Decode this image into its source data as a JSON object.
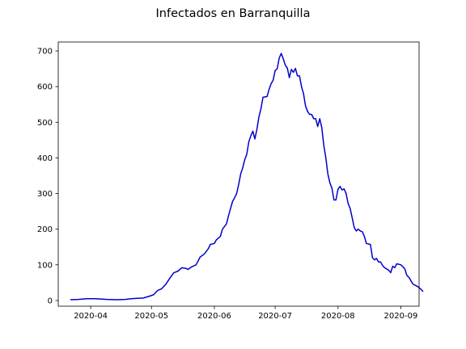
{
  "chart_data": {
    "type": "line",
    "title": "Infectados en Barranquilla",
    "xlabel": "",
    "ylabel": "",
    "x_axis": {
      "type": "date",
      "range": [
        "2020-03-16",
        "2020-09-10"
      ],
      "ticks": [
        "2020-04-01",
        "2020-05-01",
        "2020-06-01",
        "2020-07-01",
        "2020-08-01",
        "2020-09-01"
      ],
      "tick_labels": [
        "2020-04",
        "2020-05",
        "2020-06",
        "2020-07",
        "2020-08",
        "2020-09"
      ]
    },
    "y_axis": {
      "range": [
        -16,
        725
      ],
      "ticks": [
        0,
        100,
        200,
        300,
        400,
        500,
        600,
        700
      ],
      "tick_labels": [
        "0",
        "100",
        "200",
        "300",
        "400",
        "500",
        "600",
        "700"
      ]
    },
    "grid": false,
    "series": [
      {
        "color": "#0000cc",
        "points": [
          [
            "2020-03-22",
            2
          ],
          [
            "2020-03-26",
            3
          ],
          [
            "2020-03-30",
            5
          ],
          [
            "2020-04-03",
            5
          ],
          [
            "2020-04-06",
            4
          ],
          [
            "2020-04-09",
            3
          ],
          [
            "2020-04-14",
            2
          ],
          [
            "2020-04-18",
            3
          ],
          [
            "2020-04-21",
            5
          ],
          [
            "2020-04-24",
            6
          ],
          [
            "2020-04-27",
            7
          ],
          [
            "2020-04-30",
            12
          ],
          [
            "2020-05-02",
            16
          ],
          [
            "2020-05-04",
            28
          ],
          [
            "2020-05-06",
            33
          ],
          [
            "2020-05-08",
            45
          ],
          [
            "2020-05-10",
            62
          ],
          [
            "2020-05-12",
            78
          ],
          [
            "2020-05-14",
            82
          ],
          [
            "2020-05-16",
            92
          ],
          [
            "2020-05-18",
            90
          ],
          [
            "2020-05-19",
            87
          ],
          [
            "2020-05-21",
            95
          ],
          [
            "2020-05-23",
            100
          ],
          [
            "2020-05-25",
            122
          ],
          [
            "2020-05-27",
            130
          ],
          [
            "2020-05-29",
            145
          ],
          [
            "2020-05-30",
            157
          ],
          [
            "2020-06-01",
            160
          ],
          [
            "2020-06-02",
            170
          ],
          [
            "2020-06-04",
            180
          ],
          [
            "2020-06-05",
            200
          ],
          [
            "2020-06-07",
            215
          ],
          [
            "2020-06-08",
            238
          ],
          [
            "2020-06-10",
            278
          ],
          [
            "2020-06-11",
            288
          ],
          [
            "2020-06-12",
            300
          ],
          [
            "2020-06-13",
            325
          ],
          [
            "2020-06-14",
            355
          ],
          [
            "2020-06-15",
            372
          ],
          [
            "2020-06-16",
            395
          ],
          [
            "2020-06-17",
            410
          ],
          [
            "2020-06-18",
            445
          ],
          [
            "2020-06-19",
            462
          ],
          [
            "2020-06-20",
            475
          ],
          [
            "2020-06-21",
            453
          ],
          [
            "2020-06-22",
            480
          ],
          [
            "2020-06-23",
            515
          ],
          [
            "2020-06-24",
            538
          ],
          [
            "2020-06-25",
            570
          ],
          [
            "2020-06-27",
            572
          ],
          [
            "2020-06-28",
            592
          ],
          [
            "2020-06-29",
            608
          ],
          [
            "2020-06-30",
            618
          ],
          [
            "2020-07-01",
            645
          ],
          [
            "2020-07-02",
            650
          ],
          [
            "2020-07-03",
            680
          ],
          [
            "2020-07-04",
            693
          ],
          [
            "2020-07-05",
            678
          ],
          [
            "2020-07-06",
            660
          ],
          [
            "2020-07-07",
            652
          ],
          [
            "2020-07-08",
            625
          ],
          [
            "2020-07-09",
            648
          ],
          [
            "2020-07-10",
            640
          ],
          [
            "2020-07-11",
            651
          ],
          [
            "2020-07-12",
            630
          ],
          [
            "2020-07-13",
            630
          ],
          [
            "2020-07-14",
            600
          ],
          [
            "2020-07-15",
            580
          ],
          [
            "2020-07-16",
            545
          ],
          [
            "2020-07-17",
            530
          ],
          [
            "2020-07-18",
            522
          ],
          [
            "2020-07-19",
            522
          ],
          [
            "2020-07-20",
            510
          ],
          [
            "2020-07-21",
            510
          ],
          [
            "2020-07-22",
            488
          ],
          [
            "2020-07-23",
            510
          ],
          [
            "2020-07-24",
            485
          ],
          [
            "2020-07-25",
            435
          ],
          [
            "2020-07-26",
            400
          ],
          [
            "2020-07-27",
            355
          ],
          [
            "2020-07-28",
            330
          ],
          [
            "2020-07-29",
            315
          ],
          [
            "2020-07-30",
            282
          ],
          [
            "2020-07-31",
            282
          ],
          [
            "2020-08-01",
            312
          ],
          [
            "2020-08-02",
            320
          ],
          [
            "2020-08-03",
            310
          ],
          [
            "2020-08-04",
            313
          ],
          [
            "2020-08-05",
            300
          ],
          [
            "2020-08-06",
            272
          ],
          [
            "2020-08-07",
            258
          ],
          [
            "2020-08-08",
            232
          ],
          [
            "2020-08-09",
            205
          ],
          [
            "2020-08-10",
            195
          ],
          [
            "2020-08-11",
            200
          ],
          [
            "2020-08-12",
            195
          ],
          [
            "2020-08-13",
            193
          ],
          [
            "2020-08-14",
            180
          ],
          [
            "2020-08-15",
            160
          ],
          [
            "2020-08-17",
            157
          ],
          [
            "2020-08-18",
            120
          ],
          [
            "2020-08-19",
            114
          ],
          [
            "2020-08-20",
            118
          ],
          [
            "2020-08-21",
            108
          ],
          [
            "2020-08-22",
            108
          ],
          [
            "2020-08-23",
            98
          ],
          [
            "2020-08-24",
            92
          ],
          [
            "2020-08-26",
            85
          ],
          [
            "2020-08-27",
            78
          ],
          [
            "2020-08-28",
            96
          ],
          [
            "2020-08-29",
            92
          ],
          [
            "2020-08-30",
            103
          ],
          [
            "2020-09-01",
            100
          ],
          [
            "2020-09-02",
            95
          ],
          [
            "2020-09-03",
            88
          ],
          [
            "2020-09-04",
            70
          ],
          [
            "2020-09-05",
            65
          ],
          [
            "2020-09-06",
            55
          ],
          [
            "2020-09-07",
            46
          ],
          [
            "2020-09-09",
            40
          ],
          [
            "2020-09-10",
            36
          ],
          [
            "2020-09-11",
            31
          ],
          [
            "2020-09-12",
            25
          ]
        ]
      }
    ]
  }
}
